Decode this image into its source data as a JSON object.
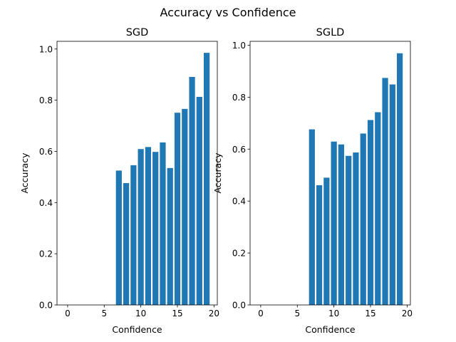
{
  "suptitle": "Accuracy vs Confidence",
  "chart_data": [
    {
      "type": "bar",
      "title": "SGD",
      "xlabel": "Confidence",
      "ylabel": "Accuracy",
      "xlim": [
        -1.45,
        20.45
      ],
      "ylim": [
        0,
        1.03
      ],
      "xticks": [
        0,
        5,
        10,
        15,
        20
      ],
      "xtick_labels": [
        "0",
        "5",
        "10",
        "15",
        "20"
      ],
      "yticks": [
        0.0,
        0.2,
        0.4,
        0.6,
        0.8,
        1.0
      ],
      "ytick_labels": [
        "0.0",
        "0.2",
        "0.4",
        "0.6",
        "0.8",
        "1.0"
      ],
      "x": [
        7,
        8,
        9,
        10,
        11,
        12,
        13,
        14,
        15,
        16,
        17,
        18,
        19
      ],
      "values": [
        0.525,
        0.476,
        0.546,
        0.609,
        0.617,
        0.598,
        0.635,
        0.535,
        0.751,
        0.766,
        0.891,
        0.813,
        0.985
      ],
      "bar_width": 0.8,
      "color": "#1f77b4"
    },
    {
      "type": "bar",
      "title": "SGLD",
      "xlabel": "Confidence",
      "ylabel": "Accuracy",
      "xlim": [
        -1.45,
        20.45
      ],
      "ylim": [
        0,
        1.015
      ],
      "xticks": [
        0,
        5,
        10,
        15,
        20
      ],
      "xtick_labels": [
        "0",
        "5",
        "10",
        "15",
        "20"
      ],
      "yticks": [
        0.0,
        0.2,
        0.4,
        0.6,
        0.8,
        1.0
      ],
      "ytick_labels": [
        "0.0",
        "0.2",
        "0.4",
        "0.6",
        "0.8",
        "1.0"
      ],
      "x": [
        7,
        8,
        9,
        10,
        11,
        12,
        13,
        14,
        15,
        16,
        17,
        18,
        19
      ],
      "values": [
        0.676,
        0.461,
        0.49,
        0.629,
        0.618,
        0.574,
        0.587,
        0.66,
        0.712,
        0.742,
        0.874,
        0.849,
        0.969
      ],
      "bar_width": 0.8,
      "color": "#1f77b4"
    }
  ]
}
